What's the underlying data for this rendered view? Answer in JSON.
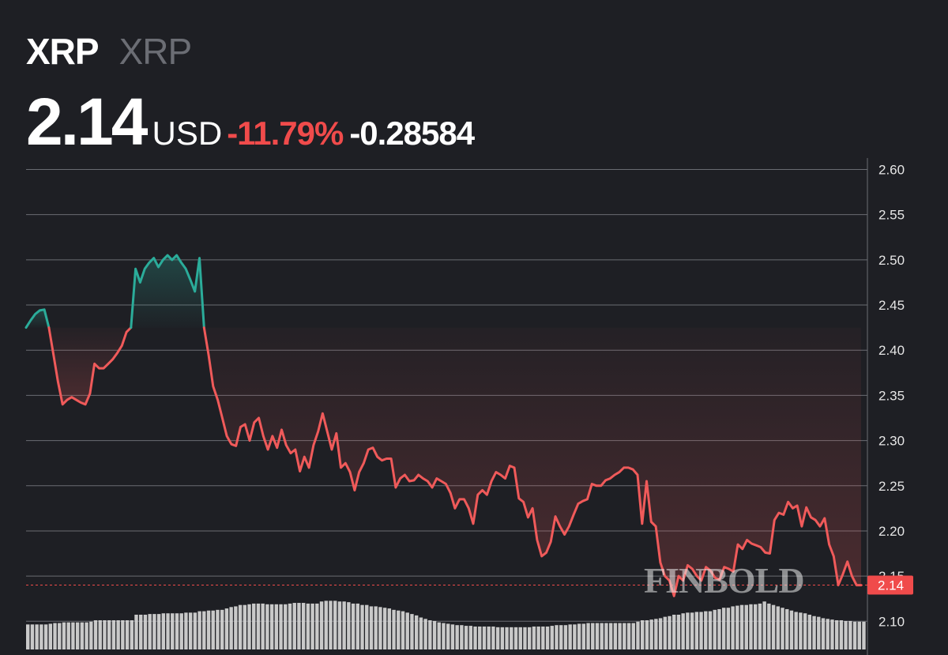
{
  "header": {
    "name": "XRP",
    "ticker": "XRP",
    "price": "2.14",
    "currency": "USD",
    "change_percent": "-11.79%",
    "change_absolute": "-0.28584"
  },
  "watermark": "FINBOLD",
  "colors": {
    "background": "#1e1f24",
    "up": "#2bac9a",
    "down": "#f05a5a",
    "last_price_label": "#f04b4b",
    "grid": "#6a6c72",
    "volume": "#d8d8d8"
  },
  "chart_data": {
    "type": "line",
    "title": "",
    "xlabel": "",
    "ylabel": "",
    "ylim": [
      2.08,
      2.62
    ],
    "y_ticks": [
      "2.60",
      "2.55",
      "2.50",
      "2.45",
      "2.40",
      "2.35",
      "2.30",
      "2.25",
      "2.20",
      "2.15",
      "2.10"
    ],
    "y_tick_values": [
      2.6,
      2.55,
      2.5,
      2.45,
      2.4,
      2.35,
      2.3,
      2.25,
      2.2,
      2.15,
      2.1
    ],
    "grid": true,
    "baseline": 2.425,
    "last_price": 2.14,
    "last_price_label": "2.14",
    "series": [
      {
        "values": [
          2.425,
          2.433,
          2.44,
          2.444,
          2.445,
          2.425,
          2.395,
          2.365,
          2.34,
          2.345,
          2.348,
          2.345,
          2.342,
          2.34,
          2.352,
          2.385,
          2.38,
          2.38,
          2.385,
          2.39,
          2.397,
          2.405,
          2.42,
          2.425,
          2.49,
          2.475,
          2.49,
          2.497,
          2.502,
          2.492,
          2.5,
          2.505,
          2.5,
          2.505,
          2.497,
          2.49,
          2.478,
          2.465,
          2.502,
          2.425,
          2.395,
          2.36,
          2.345,
          2.325,
          2.305,
          2.296,
          2.294,
          2.315,
          2.318,
          2.3,
          2.32,
          2.325,
          2.305,
          2.29,
          2.305,
          2.292,
          2.312,
          2.295,
          2.286,
          2.29,
          2.266,
          2.282,
          2.27,
          2.295,
          2.31,
          2.33,
          2.31,
          2.29,
          2.308,
          2.27,
          2.275,
          2.265,
          2.245,
          2.265,
          2.275,
          2.29,
          2.292,
          2.282,
          2.278,
          2.28,
          2.28,
          2.248,
          2.258,
          2.262,
          2.255,
          2.256,
          2.262,
          2.258,
          2.255,
          2.248,
          2.258,
          2.255,
          2.252,
          2.242,
          2.225,
          2.235,
          2.235,
          2.225,
          2.208,
          2.24,
          2.245,
          2.24,
          2.255,
          2.265,
          2.262,
          2.258,
          2.272,
          2.27,
          2.236,
          2.232,
          2.215,
          2.225,
          2.19,
          2.172,
          2.176,
          2.188,
          2.216,
          2.205,
          2.196,
          2.205,
          2.218,
          2.23,
          2.233,
          2.235,
          2.252,
          2.25,
          2.25,
          2.256,
          2.258,
          2.262,
          2.265,
          2.27,
          2.27,
          2.268,
          2.262,
          2.208,
          2.255,
          2.21,
          2.205,
          2.165,
          2.15,
          2.145,
          2.128,
          2.15,
          2.145,
          2.162,
          2.158,
          2.15,
          2.145,
          2.16,
          2.156,
          2.148,
          2.146,
          2.16,
          2.158,
          2.155,
          2.185,
          2.18,
          2.19,
          2.186,
          2.184,
          2.182,
          2.176,
          2.175,
          2.212,
          2.22,
          2.218,
          2.232,
          2.225,
          2.228,
          2.205,
          2.226,
          2.215,
          2.212,
          2.205,
          2.214,
          2.185,
          2.172,
          2.14,
          2.152,
          2.166,
          2.15,
          2.14,
          2.14
        ]
      }
    ],
    "volume": [
      0.36,
      0.36,
      0.36,
      0.36,
      0.36,
      0.37,
      0.38,
      0.38,
      0.39,
      0.39,
      0.39,
      0.39,
      0.39,
      0.39,
      0.4,
      0.42,
      0.42,
      0.42,
      0.42,
      0.42,
      0.42,
      0.42,
      0.42,
      0.42,
      0.5,
      0.5,
      0.5,
      0.51,
      0.51,
      0.51,
      0.52,
      0.52,
      0.52,
      0.52,
      0.52,
      0.53,
      0.53,
      0.53,
      0.55,
      0.55,
      0.56,
      0.56,
      0.57,
      0.57,
      0.59,
      0.61,
      0.62,
      0.64,
      0.64,
      0.65,
      0.66,
      0.66,
      0.66,
      0.65,
      0.65,
      0.65,
      0.65,
      0.65,
      0.66,
      0.67,
      0.67,
      0.67,
      0.66,
      0.66,
      0.66,
      0.69,
      0.7,
      0.7,
      0.7,
      0.69,
      0.69,
      0.68,
      0.66,
      0.66,
      0.64,
      0.64,
      0.62,
      0.62,
      0.61,
      0.6,
      0.59,
      0.57,
      0.56,
      0.55,
      0.53,
      0.51,
      0.49,
      0.46,
      0.44,
      0.42,
      0.41,
      0.39,
      0.38,
      0.37,
      0.36,
      0.35,
      0.35,
      0.34,
      0.34,
      0.33,
      0.33,
      0.33,
      0.33,
      0.33,
      0.32,
      0.32,
      0.32,
      0.32,
      0.32,
      0.32,
      0.32,
      0.32,
      0.33,
      0.33,
      0.33,
      0.33,
      0.34,
      0.35,
      0.35,
      0.35,
      0.36,
      0.36,
      0.37,
      0.37,
      0.38,
      0.38,
      0.38,
      0.38,
      0.38,
      0.38,
      0.38,
      0.38,
      0.38,
      0.38,
      0.38,
      0.4,
      0.42,
      0.42,
      0.43,
      0.44,
      0.45,
      0.47,
      0.48,
      0.5,
      0.5,
      0.52,
      0.53,
      0.53,
      0.54,
      0.54,
      0.55,
      0.55,
      0.57,
      0.58,
      0.6,
      0.6,
      0.62,
      0.63,
      0.64,
      0.64,
      0.65,
      0.65,
      0.66,
      0.69,
      0.66,
      0.64,
      0.62,
      0.6,
      0.58,
      0.56,
      0.54,
      0.53,
      0.52,
      0.5,
      0.48,
      0.47,
      0.45,
      0.44,
      0.43,
      0.42,
      0.42,
      0.41,
      0.41,
      0.4,
      0.4,
      0.4
    ]
  }
}
